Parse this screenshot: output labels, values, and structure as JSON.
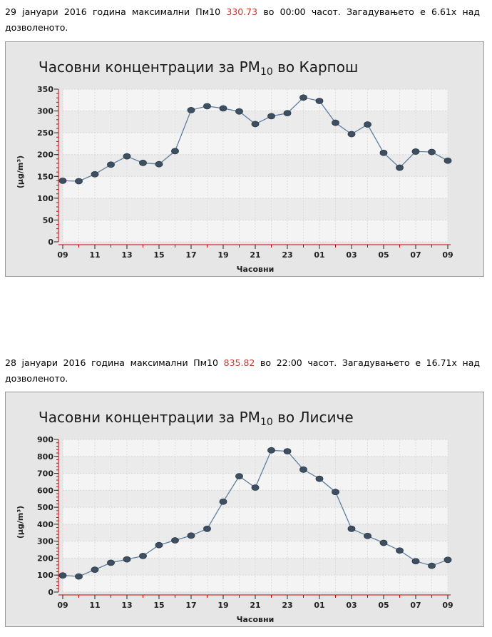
{
  "paragraphs": [
    {
      "before": "29 јануари 2016 година максимални Пм10 ",
      "value": "330.73",
      "after": " во 00:00 часот. Загадувањето е 6.61x над дозволеното."
    },
    {
      "before": "28 јануари 2016 година максимални Пм10 ",
      "value": "835.82",
      "after": " во 22:00 часот. Загадувањето е 16.71x над дозволеното."
    }
  ],
  "colors": {
    "highlight": "#c0392b",
    "line": "#5f7f9f",
    "marker": "#3e4f62",
    "plot_bg": "#f4f4f4",
    "axis_red": "#cc0000"
  },
  "chart_data": [
    {
      "type": "line",
      "title_prefix": "Часовни концентрации за PM",
      "title_sub": "10",
      "title_suffix": " во Карпош",
      "xlabel": "Часовни",
      "ylabel": "(µg/m³)",
      "ylim": [
        0,
        350
      ],
      "yticks": [
        0,
        50,
        100,
        150,
        200,
        250,
        300,
        350
      ],
      "x": [
        "09",
        "10",
        "11",
        "12",
        "13",
        "14",
        "15",
        "16",
        "17",
        "18",
        "19",
        "20",
        "21",
        "22",
        "23",
        "00",
        "01",
        "02",
        "03",
        "04",
        "05",
        "06",
        "07",
        "08",
        "09"
      ],
      "xticks": [
        "09",
        "11",
        "13",
        "15",
        "17",
        "19",
        "21",
        "23",
        "01",
        "03",
        "05",
        "07",
        "09"
      ],
      "values": [
        140,
        139,
        155,
        177,
        196,
        181,
        178,
        208,
        302,
        311,
        306,
        299,
        270,
        288,
        295,
        330.73,
        323,
        273,
        247,
        269,
        204,
        170,
        207,
        206,
        186
      ],
      "grid": true
    },
    {
      "type": "line",
      "title_prefix": "Часовни концентрации за PM",
      "title_sub": "10",
      "title_suffix": " во Лисиче",
      "xlabel": "Часовни",
      "ylabel": "(µg/m³)",
      "ylim": [
        0,
        900
      ],
      "yticks": [
        0,
        100,
        200,
        300,
        400,
        500,
        600,
        700,
        800,
        900
      ],
      "x": [
        "09",
        "10",
        "11",
        "12",
        "13",
        "14",
        "15",
        "16",
        "17",
        "18",
        "19",
        "20",
        "21",
        "22",
        "23",
        "00",
        "01",
        "02",
        "03",
        "04",
        "05",
        "06",
        "07",
        "08",
        "09"
      ],
      "xticks": [
        "09",
        "11",
        "13",
        "15",
        "17",
        "19",
        "21",
        "23",
        "01",
        "03",
        "05",
        "07",
        "09"
      ],
      "values": [
        98,
        92,
        132,
        173,
        193,
        213,
        277,
        305,
        333,
        373,
        533,
        683,
        616,
        835.82,
        830,
        722,
        668,
        590,
        373,
        331,
        290,
        245,
        182,
        155,
        190
      ],
      "grid": true
    }
  ]
}
